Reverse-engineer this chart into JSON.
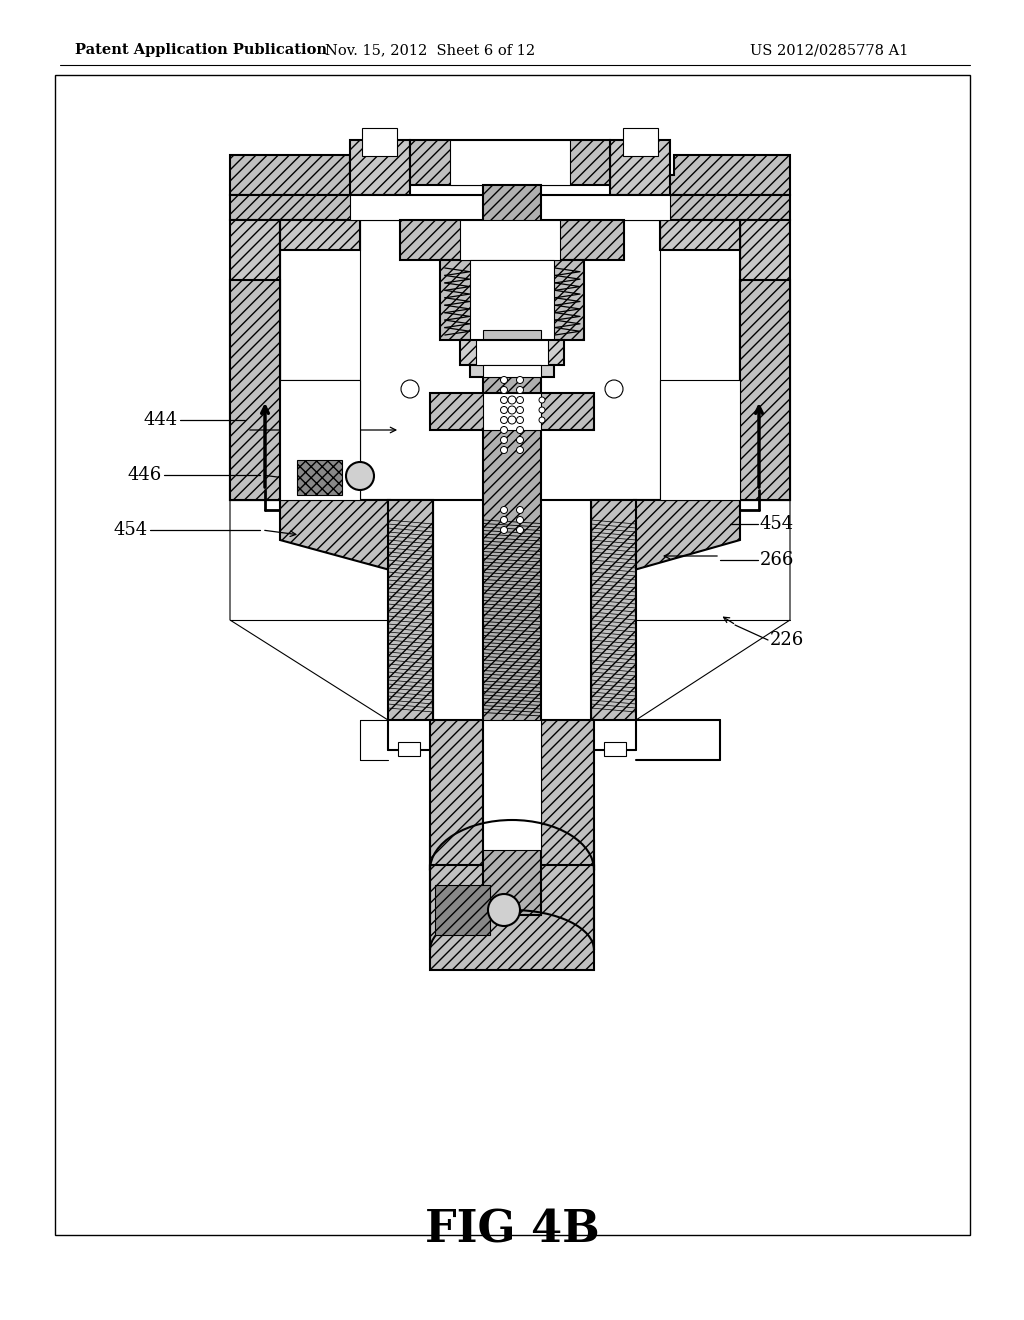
{
  "header_left": "Patent Application Publication",
  "header_mid": "Nov. 15, 2012  Sheet 6 of 12",
  "header_right": "US 2012/0285778 A1",
  "fig_caption": "FIG 4B",
  "caption_fontsize": 32,
  "header_fontsize": 10.5,
  "bg_color": "#ffffff",
  "line_color": "#000000",
  "label_444": "444",
  "label_446": "446",
  "label_454a": "454",
  "label_454b": "454",
  "label_266": "266",
  "label_226": "226"
}
